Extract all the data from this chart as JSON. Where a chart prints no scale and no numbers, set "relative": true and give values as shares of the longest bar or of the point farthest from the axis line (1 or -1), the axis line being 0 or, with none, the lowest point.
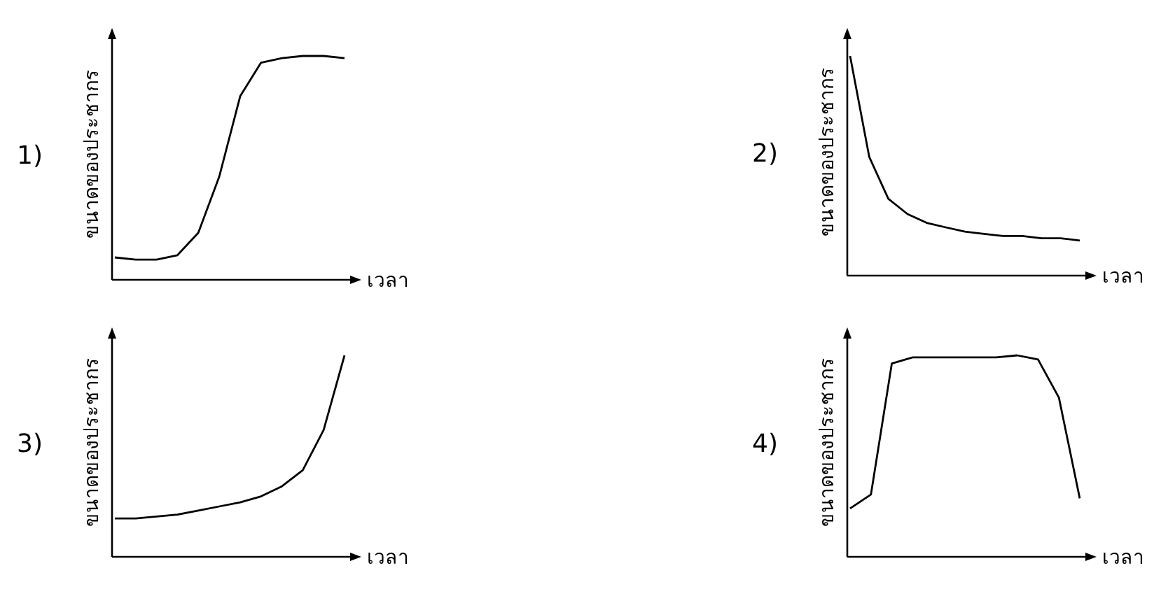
{
  "chart_data": [
    {
      "type": "line",
      "title": "1)",
      "xlabel": "เวลา",
      "ylabel": "ขนาดของประชากร",
      "relative": true,
      "color": "#000000",
      "categories": [
        null,
        null,
        null,
        null,
        null,
        null,
        null,
        null,
        null,
        null,
        null,
        null
      ],
      "values": [
        0.1,
        0.09,
        0.09,
        0.11,
        0.21,
        0.46,
        0.82,
        0.97,
        0.99,
        1,
        1,
        0.99
      ]
    },
    {
      "type": "line",
      "title": "2)",
      "xlabel": "เวลา",
      "ylabel": "ขนาดของประชากร",
      "relative": true,
      "color": "#000000",
      "categories": [
        null,
        null,
        null,
        null,
        null,
        null,
        null,
        null,
        null,
        null,
        null,
        null,
        null
      ],
      "values": [
        1,
        0.54,
        0.35,
        0.28,
        0.24,
        0.22,
        0.2,
        0.19,
        0.18,
        0.18,
        0.17,
        0.17,
        0.16
      ]
    },
    {
      "type": "line",
      "title": "3)",
      "xlabel": "เวลา",
      "ylabel": "ขนาดของประชากร",
      "relative": true,
      "color": "#000000",
      "categories": [
        null,
        null,
        null,
        null,
        null,
        null,
        null,
        null,
        null,
        null,
        null,
        null
      ],
      "values": [
        0.19,
        0.19,
        0.2,
        0.21,
        0.23,
        0.25,
        0.27,
        0.3,
        0.35,
        0.43,
        0.63,
        1
      ]
    },
    {
      "type": "line",
      "title": "4)",
      "xlabel": "เวลา",
      "ylabel": "ขนาดของประชากร",
      "relative": true,
      "color": "#000000",
      "categories": [
        null,
        null,
        null,
        null,
        null,
        null,
        null,
        null,
        null,
        null,
        null,
        null
      ],
      "values": [
        0.24,
        0.31,
        0.96,
        0.99,
        0.99,
        0.99,
        0.99,
        0.99,
        1,
        0.98,
        0.79,
        0.29
      ]
    }
  ]
}
